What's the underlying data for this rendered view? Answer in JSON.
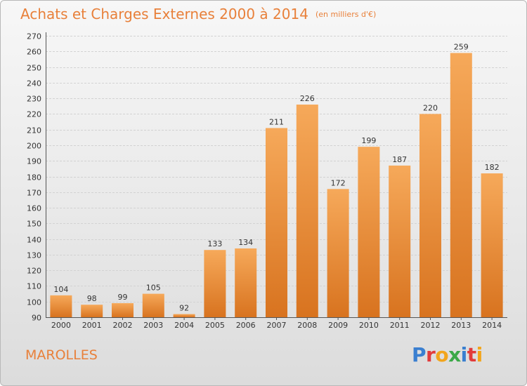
{
  "title": "Achats et Charges Externes 2000 à 2014",
  "subtitle": "(en milliers d'€)",
  "footer_label": "MAROLLES",
  "brand": {
    "letters": [
      "P",
      "r",
      "o",
      "x",
      "i",
      "t",
      "i"
    ],
    "colors": [
      "#3a7fd0",
      "#e23b3b",
      "#f2a51c",
      "#3aa847",
      "#3a7fd0",
      "#e23b3b",
      "#f2a51c"
    ]
  },
  "colors": {
    "bar_light": "#f6a95a",
    "bar_dark": "#d8731f",
    "accent": "#e8803a"
  },
  "chart_data": {
    "type": "bar",
    "categories": [
      "2000",
      "2001",
      "2002",
      "2003",
      "2004",
      "2005",
      "2006",
      "2007",
      "2008",
      "2009",
      "2010",
      "2011",
      "2012",
      "2013",
      "2014"
    ],
    "values": [
      104,
      98,
      99,
      105,
      92,
      133,
      134,
      211,
      226,
      172,
      199,
      187,
      220,
      259,
      182
    ],
    "ylim": [
      90,
      270
    ],
    "yticks": [
      90,
      100,
      110,
      120,
      130,
      140,
      150,
      160,
      170,
      180,
      190,
      200,
      210,
      220,
      230,
      240,
      250,
      260,
      270
    ],
    "grid": true,
    "title": "Achats et Charges Externes 2000 à 2014",
    "xlabel": "",
    "ylabel": ""
  }
}
